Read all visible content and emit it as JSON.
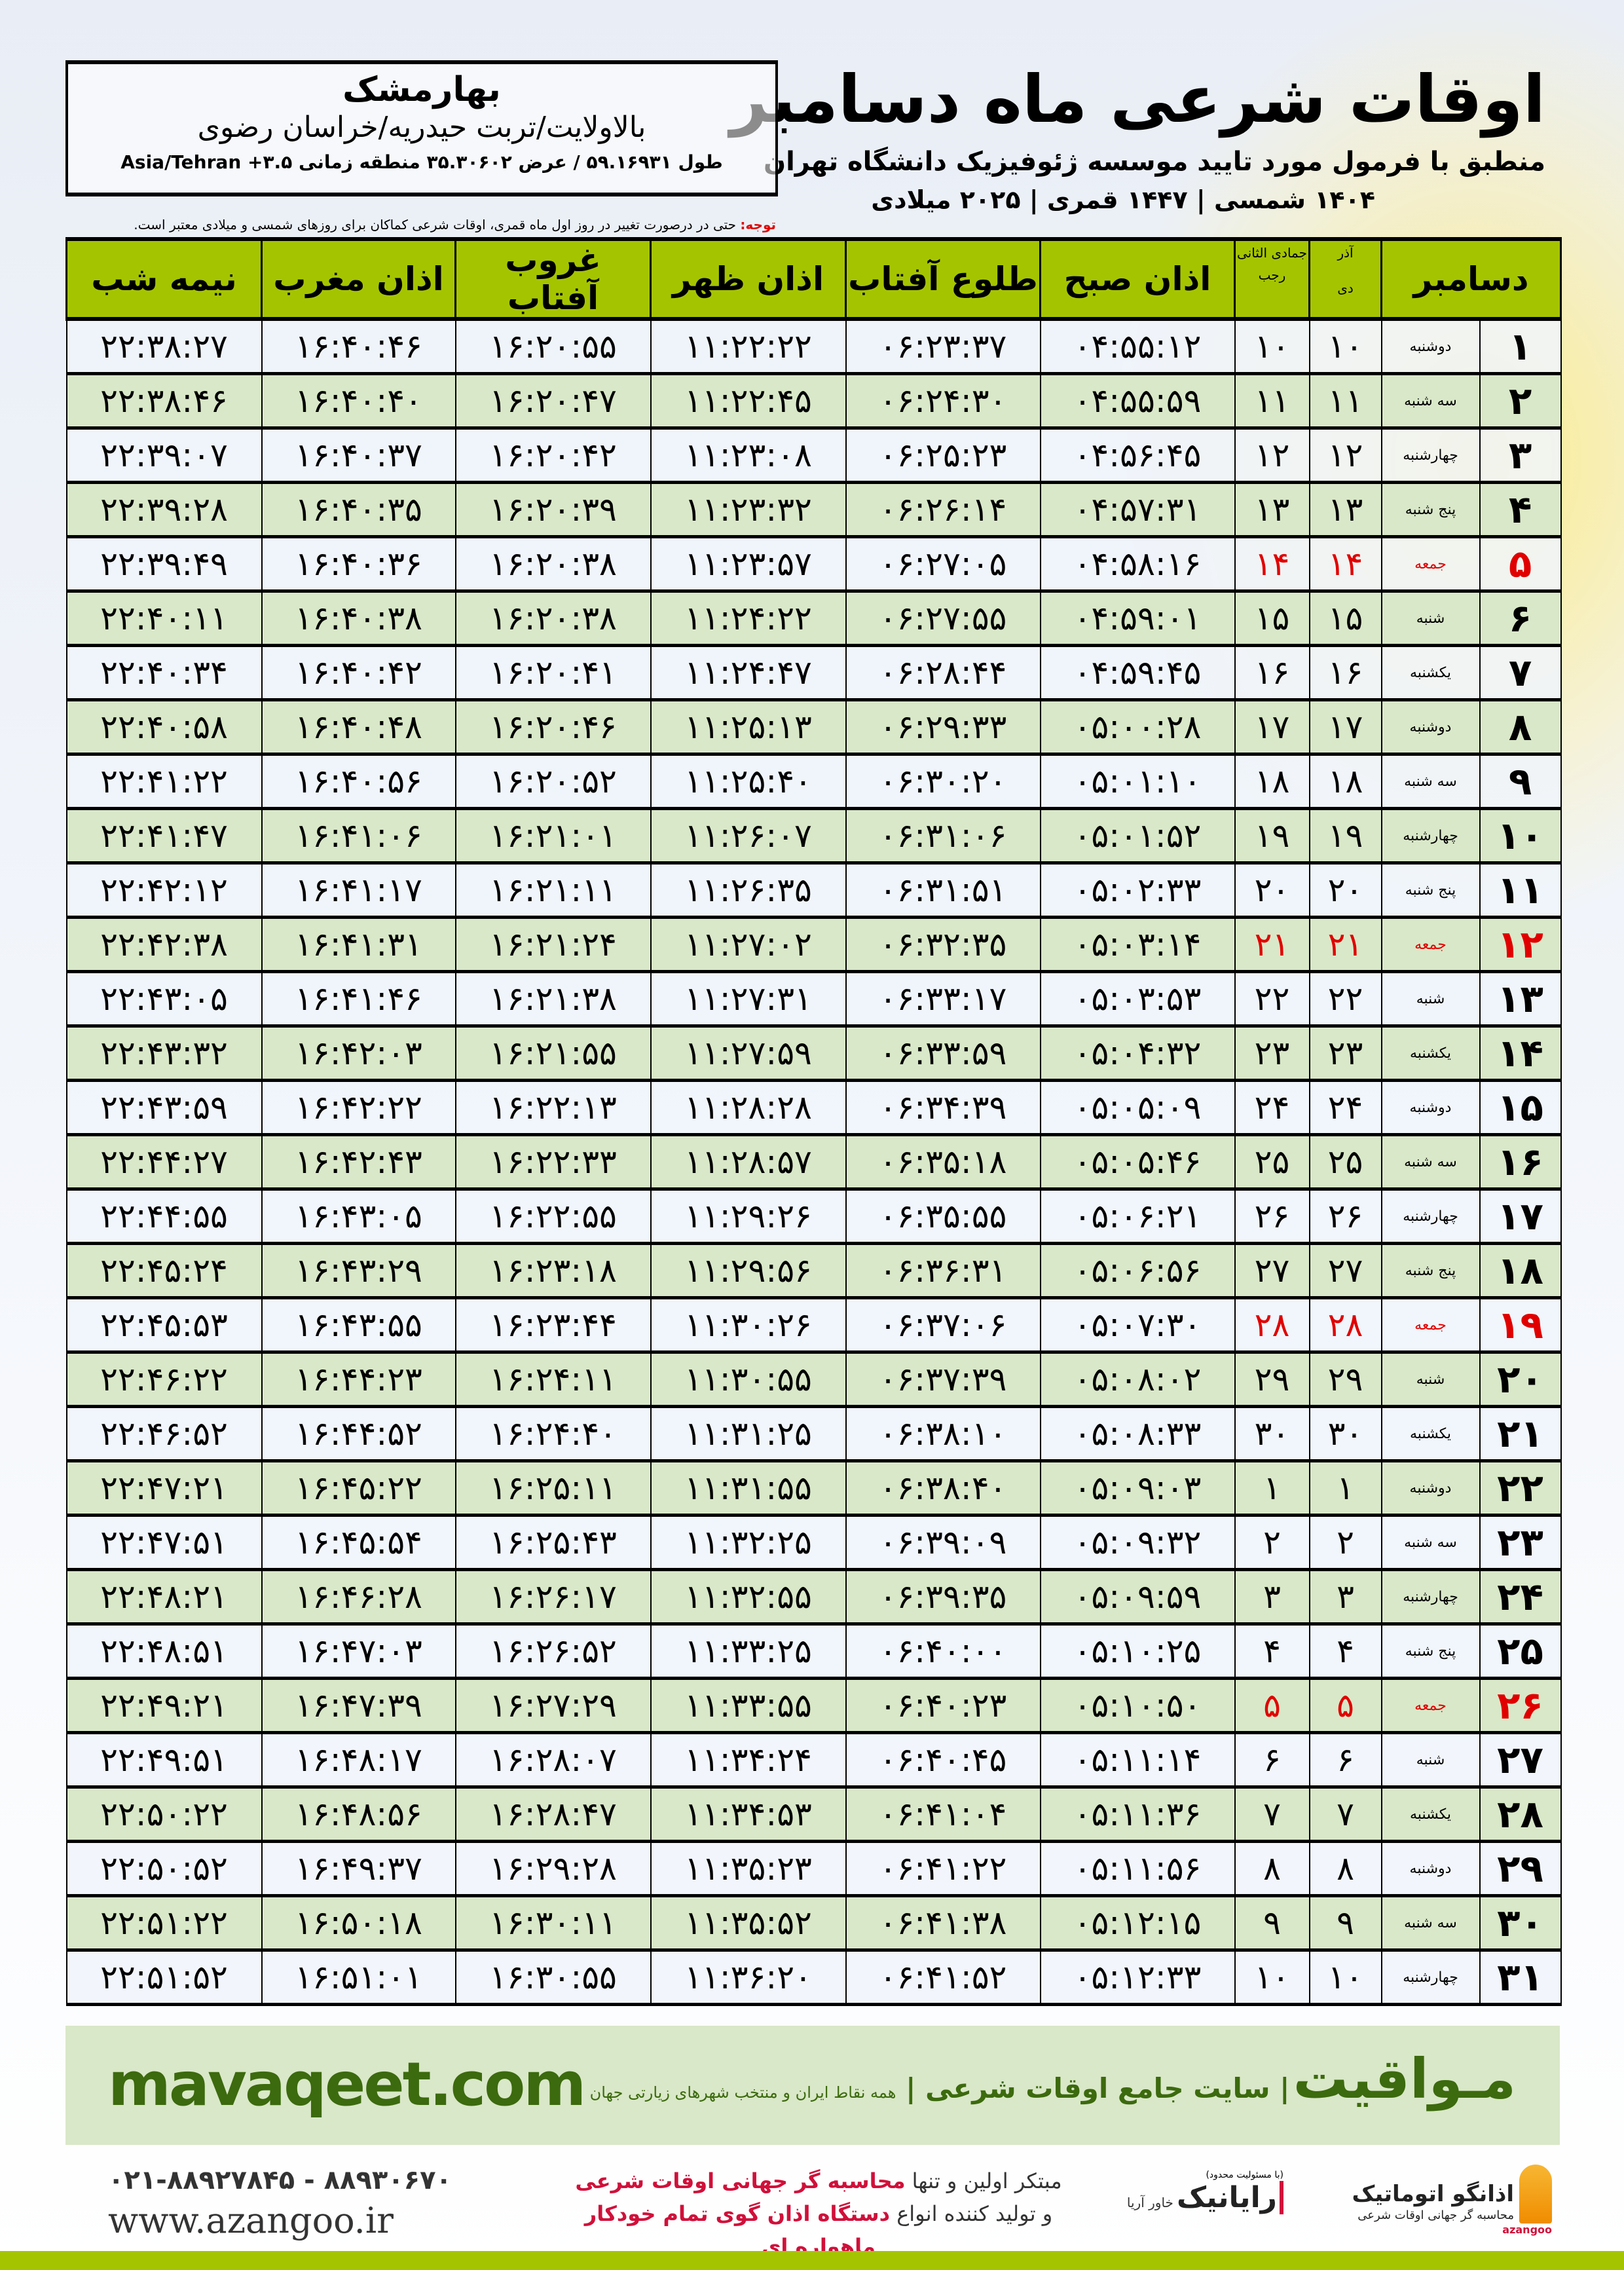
{
  "header": {
    "title": "اوقات شرعی ماه دسامبر",
    "subtitle": "منطبق با فرمول مورد تایید موسسه ژئوفیزیک دانشگاه تهران",
    "dates": "۱۴۰۴ شمسی | ۱۴۴۷ قمری | ۲۰۲۵ میلادی"
  },
  "location": {
    "city": "بهارمشک",
    "region": "بالاولایت/تربت حیدریه/خراسان رضوی",
    "coords": "طول ۵۹.۱۶۹۳۱ / عرض ۳۵.۳۰۶۰۲ منطقه زمانی ۳.۵+ Asia/Tehran"
  },
  "note": {
    "label": "توجه:",
    "text": " حتی در درصورت تغییر در روز اول ماه قمری، اوقات شرعی کماکان برای روزهای شمسی و میلادی معتبر است."
  },
  "table": {
    "headers": {
      "month": "دسامبر",
      "shamsi": "آذر",
      "shamsi2": "دی",
      "lunar": "جمادی الثانی",
      "lunar2": "رجب",
      "fajr": "اذان صبح",
      "sunrise": "طلوع آفتاب",
      "dhuhr": "اذان ظهر",
      "sunset": "غروب آفتاب",
      "maghrib": "اذان مغرب",
      "midnight": "نیمه شب"
    },
    "holiday_color": "#e00000",
    "rows": [
      [
        "۱",
        "دوشنبه",
        "۱۰",
        "۱۰",
        "۰۴:۵۵:۱۲",
        "۰۶:۲۳:۳۷",
        "۱۱:۲۲:۲۲",
        "۱۶:۲۰:۵۵",
        "۱۶:۴۰:۴۶",
        "۲۲:۳۸:۲۷",
        false
      ],
      [
        "۲",
        "سه شنبه",
        "۱۱",
        "۱۱",
        "۰۴:۵۵:۵۹",
        "۰۶:۲۴:۳۰",
        "۱۱:۲۲:۴۵",
        "۱۶:۲۰:۴۷",
        "۱۶:۴۰:۴۰",
        "۲۲:۳۸:۴۶",
        false
      ],
      [
        "۳",
        "چهارشنبه",
        "۱۲",
        "۱۲",
        "۰۴:۵۶:۴۵",
        "۰۶:۲۵:۲۳",
        "۱۱:۲۳:۰۸",
        "۱۶:۲۰:۴۲",
        "۱۶:۴۰:۳۷",
        "۲۲:۳۹:۰۷",
        false
      ],
      [
        "۴",
        "پنج شنبه",
        "۱۳",
        "۱۳",
        "۰۴:۵۷:۳۱",
        "۰۶:۲۶:۱۴",
        "۱۱:۲۳:۳۲",
        "۱۶:۲۰:۳۹",
        "۱۶:۴۰:۳۵",
        "۲۲:۳۹:۲۸",
        false
      ],
      [
        "۵",
        "جمعه",
        "۱۴",
        "۱۴",
        "۰۴:۵۸:۱۶",
        "۰۶:۲۷:۰۵",
        "۱۱:۲۳:۵۷",
        "۱۶:۲۰:۳۸",
        "۱۶:۴۰:۳۶",
        "۲۲:۳۹:۴۹",
        true
      ],
      [
        "۶",
        "شنبه",
        "۱۵",
        "۱۵",
        "۰۴:۵۹:۰۱",
        "۰۶:۲۷:۵۵",
        "۱۱:۲۴:۲۲",
        "۱۶:۲۰:۳۸",
        "۱۶:۴۰:۳۸",
        "۲۲:۴۰:۱۱",
        false
      ],
      [
        "۷",
        "یکشنبه",
        "۱۶",
        "۱۶",
        "۰۴:۵۹:۴۵",
        "۰۶:۲۸:۴۴",
        "۱۱:۲۴:۴۷",
        "۱۶:۲۰:۴۱",
        "۱۶:۴۰:۴۲",
        "۲۲:۴۰:۳۴",
        false
      ],
      [
        "۸",
        "دوشنبه",
        "۱۷",
        "۱۷",
        "۰۵:۰۰:۲۸",
        "۰۶:۲۹:۳۳",
        "۱۱:۲۵:۱۳",
        "۱۶:۲۰:۴۶",
        "۱۶:۴۰:۴۸",
        "۲۲:۴۰:۵۸",
        false
      ],
      [
        "۹",
        "سه شنبه",
        "۱۸",
        "۱۸",
        "۰۵:۰۱:۱۰",
        "۰۶:۳۰:۲۰",
        "۱۱:۲۵:۴۰",
        "۱۶:۲۰:۵۲",
        "۱۶:۴۰:۵۶",
        "۲۲:۴۱:۲۲",
        false
      ],
      [
        "۱۰",
        "چهارشنبه",
        "۱۹",
        "۱۹",
        "۰۵:۰۱:۵۲",
        "۰۶:۳۱:۰۶",
        "۱۱:۲۶:۰۷",
        "۱۶:۲۱:۰۱",
        "۱۶:۴۱:۰۶",
        "۲۲:۴۱:۴۷",
        false
      ],
      [
        "۱۱",
        "پنج شنبه",
        "۲۰",
        "۲۰",
        "۰۵:۰۲:۳۳",
        "۰۶:۳۱:۵۱",
        "۱۱:۲۶:۳۵",
        "۱۶:۲۱:۱۱",
        "۱۶:۴۱:۱۷",
        "۲۲:۴۲:۱۲",
        false
      ],
      [
        "۱۲",
        "جمعه",
        "۲۱",
        "۲۱",
        "۰۵:۰۳:۱۴",
        "۰۶:۳۲:۳۵",
        "۱۱:۲۷:۰۲",
        "۱۶:۲۱:۲۴",
        "۱۶:۴۱:۳۱",
        "۲۲:۴۲:۳۸",
        true
      ],
      [
        "۱۳",
        "شنبه",
        "۲۲",
        "۲۲",
        "۰۵:۰۳:۵۳",
        "۰۶:۳۳:۱۷",
        "۱۱:۲۷:۳۱",
        "۱۶:۲۱:۳۸",
        "۱۶:۴۱:۴۶",
        "۲۲:۴۳:۰۵",
        false
      ],
      [
        "۱۴",
        "یکشنبه",
        "۲۳",
        "۲۳",
        "۰۵:۰۴:۳۲",
        "۰۶:۳۳:۵۹",
        "۱۱:۲۷:۵۹",
        "۱۶:۲۱:۵۵",
        "۱۶:۴۲:۰۳",
        "۲۲:۴۳:۳۲",
        false
      ],
      [
        "۱۵",
        "دوشنبه",
        "۲۴",
        "۲۴",
        "۰۵:۰۵:۰۹",
        "۰۶:۳۴:۳۹",
        "۱۱:۲۸:۲۸",
        "۱۶:۲۲:۱۳",
        "۱۶:۴۲:۲۲",
        "۲۲:۴۳:۵۹",
        false
      ],
      [
        "۱۶",
        "سه شنبه",
        "۲۵",
        "۲۵",
        "۰۵:۰۵:۴۶",
        "۰۶:۳۵:۱۸",
        "۱۱:۲۸:۵۷",
        "۱۶:۲۲:۳۳",
        "۱۶:۴۲:۴۳",
        "۲۲:۴۴:۲۷",
        false
      ],
      [
        "۱۷",
        "چهارشنبه",
        "۲۶",
        "۲۶",
        "۰۵:۰۶:۲۱",
        "۰۶:۳۵:۵۵",
        "۱۱:۲۹:۲۶",
        "۱۶:۲۲:۵۵",
        "۱۶:۴۳:۰۵",
        "۲۲:۴۴:۵۵",
        false
      ],
      [
        "۱۸",
        "پنج شنبه",
        "۲۷",
        "۲۷",
        "۰۵:۰۶:۵۶",
        "۰۶:۳۶:۳۱",
        "۱۱:۲۹:۵۶",
        "۱۶:۲۳:۱۸",
        "۱۶:۴۳:۲۹",
        "۲۲:۴۵:۲۴",
        false
      ],
      [
        "۱۹",
        "جمعه",
        "۲۸",
        "۲۸",
        "۰۵:۰۷:۳۰",
        "۰۶:۳۷:۰۶",
        "۱۱:۳۰:۲۶",
        "۱۶:۲۳:۴۴",
        "۱۶:۴۳:۵۵",
        "۲۲:۴۵:۵۳",
        true
      ],
      [
        "۲۰",
        "شنبه",
        "۲۹",
        "۲۹",
        "۰۵:۰۸:۰۲",
        "۰۶:۳۷:۳۹",
        "۱۱:۳۰:۵۵",
        "۱۶:۲۴:۱۱",
        "۱۶:۴۴:۲۳",
        "۲۲:۴۶:۲۲",
        false
      ],
      [
        "۲۱",
        "یکشنبه",
        "۳۰",
        "۳۰",
        "۰۵:۰۸:۳۳",
        "۰۶:۳۸:۱۰",
        "۱۱:۳۱:۲۵",
        "۱۶:۲۴:۴۰",
        "۱۶:۴۴:۵۲",
        "۲۲:۴۶:۵۲",
        false
      ],
      [
        "۲۲",
        "دوشنبه",
        "۱",
        "۱",
        "۰۵:۰۹:۰۳",
        "۰۶:۳۸:۴۰",
        "۱۱:۳۱:۵۵",
        "۱۶:۲۵:۱۱",
        "۱۶:۴۵:۲۲",
        "۲۲:۴۷:۲۱",
        false
      ],
      [
        "۲۳",
        "سه شنبه",
        "۲",
        "۲",
        "۰۵:۰۹:۳۲",
        "۰۶:۳۹:۰۹",
        "۱۱:۳۲:۲۵",
        "۱۶:۲۵:۴۳",
        "۱۶:۴۵:۵۴",
        "۲۲:۴۷:۵۱",
        false
      ],
      [
        "۲۴",
        "چهارشنبه",
        "۳",
        "۳",
        "۰۵:۰۹:۵۹",
        "۰۶:۳۹:۳۵",
        "۱۱:۳۲:۵۵",
        "۱۶:۲۶:۱۷",
        "۱۶:۴۶:۲۸",
        "۲۲:۴۸:۲۱",
        false
      ],
      [
        "۲۵",
        "پنج شنبه",
        "۴",
        "۴",
        "۰۵:۱۰:۲۵",
        "۰۶:۴۰:۰۰",
        "۱۱:۳۳:۲۵",
        "۱۶:۲۶:۵۲",
        "۱۶:۴۷:۰۳",
        "۲۲:۴۸:۵۱",
        false
      ],
      [
        "۲۶",
        "جمعه",
        "۵",
        "۵",
        "۰۵:۱۰:۵۰",
        "۰۶:۴۰:۲۳",
        "۱۱:۳۳:۵۵",
        "۱۶:۲۷:۲۹",
        "۱۶:۴۷:۳۹",
        "۲۲:۴۹:۲۱",
        true
      ],
      [
        "۲۷",
        "شنبه",
        "۶",
        "۶",
        "۰۵:۱۱:۱۴",
        "۰۶:۴۰:۴۵",
        "۱۱:۳۴:۲۴",
        "۱۶:۲۸:۰۷",
        "۱۶:۴۸:۱۷",
        "۲۲:۴۹:۵۱",
        false
      ],
      [
        "۲۸",
        "یکشنبه",
        "۷",
        "۷",
        "۰۵:۱۱:۳۶",
        "۰۶:۴۱:۰۴",
        "۱۱:۳۴:۵۳",
        "۱۶:۲۸:۴۷",
        "۱۶:۴۸:۵۶",
        "۲۲:۵۰:۲۲",
        false
      ],
      [
        "۲۹",
        "دوشنبه",
        "۸",
        "۸",
        "۰۵:۱۱:۵۶",
        "۰۶:۴۱:۲۲",
        "۱۱:۳۵:۲۳",
        "۱۶:۲۹:۲۸",
        "۱۶:۴۹:۳۷",
        "۲۲:۵۰:۵۲",
        false
      ],
      [
        "۳۰",
        "سه شنبه",
        "۹",
        "۹",
        "۰۵:۱۲:۱۵",
        "۰۶:۴۱:۳۸",
        "۱۱:۳۵:۵۲",
        "۱۶:۳۰:۱۱",
        "۱۶:۵۰:۱۸",
        "۲۲:۵۱:۲۲",
        false
      ],
      [
        "۳۱",
        "چهارشنبه",
        "۱۰",
        "۱۰",
        "۰۵:۱۲:۳۳",
        "۰۶:۴۱:۵۲",
        "۱۱:۳۶:۲۰",
        "۱۶:۳۰:۵۵",
        "۱۶:۵۱:۰۱",
        "۲۲:۵۱:۵۲",
        false
      ]
    ]
  },
  "footer": {
    "site": "mavaqeet.com",
    "brand": "مـواقیت",
    "tagline": "سایت جامع اوقات شرعی",
    "sub": "همه نقاط ایران و منتخب شهرهای زیارتی جهان",
    "brand_color": "#3c6a0e",
    "phones": "۰۲۱-۸۸۹۲۷۸۴۵ - ۸۸۹۳۰۶۷۰",
    "web": "www.azangoo.ir",
    "promo1_a": "مبتکر اولین و تنها ",
    "promo1_b": "محاسبه گر جهانی اوقات شرعی",
    "promo2_a": "و تولید کننده انواع ",
    "promo2_b": "دستگاه اذان گوی تمام خودکار ماهواره ای",
    "rayanik_note": "(با مسئولیت محدود)",
    "rayanik": "رایانیک",
    "rayanik_sub": "خاور آریا",
    "azangoo_name": "اذانگو اتوماتیک",
    "azangoo_sub": "محاسبه گر جهانی اوقات شرعی",
    "azangoo_latin": "azangoo"
  }
}
